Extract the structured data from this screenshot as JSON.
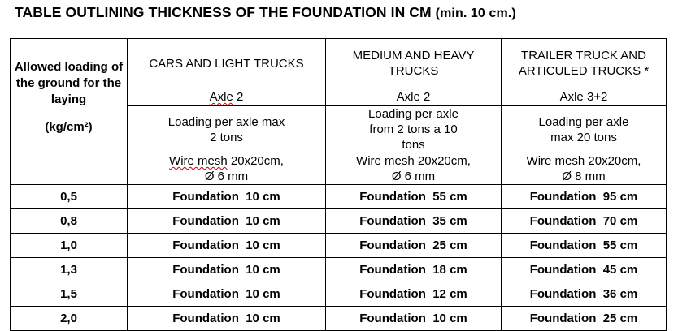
{
  "title": "TABLE OUTLINING  THICKNESS OF THE FOUNDATION  IN CM",
  "title_min": "(min. 10 cm.)",
  "row_header": {
    "label": "Allowed loading of the ground for the laying",
    "unit": "(kg/cm²)"
  },
  "columns": [
    {
      "heading": "CARS AND LIGHT TRUCKS",
      "axle_word": "Axle",
      "axle_value": "2",
      "loading": "Loading per axle max 2 tons",
      "mesh_word": "Wire mesh",
      "mesh_rest": "20x20cm,",
      "mesh_dia": "Ø 6 mm"
    },
    {
      "heading": "MEDIUM AND HEAVY TRUCKS",
      "axle_word": "Axle",
      "axle_value": "2",
      "loading": "Loading per axle from 2 tons a 10 tons",
      "mesh_word": "Wire mesh",
      "mesh_rest": "20x20cm,",
      "mesh_dia": "Ø 6 mm"
    },
    {
      "heading": "TRAILER TRUCK AND ARTICULED TRUCKS *",
      "axle_word": "Axle",
      "axle_value": "3+2",
      "loading": "Loading per axle max 20 tons",
      "mesh_word": "Wire mesh",
      "mesh_rest": "20x20cm,",
      "mesh_dia": "Ø 8 mm"
    }
  ],
  "rows": [
    {
      "load": "0,5",
      "cells": [
        "Foundation  10 cm",
        "Foundation  55 cm",
        "Foundation  95 cm"
      ]
    },
    {
      "load": "0,8",
      "cells": [
        "Foundation  10 cm",
        "Foundation  35 cm",
        "Foundation  70 cm"
      ]
    },
    {
      "load": "1,0",
      "cells": [
        "Foundation  10 cm",
        "Foundation  25 cm",
        "Foundation  55 cm"
      ]
    },
    {
      "load": "1,3",
      "cells": [
        "Foundation  10 cm",
        "Foundation  18 cm",
        "Foundation  45 cm"
      ]
    },
    {
      "load": "1,5",
      "cells": [
        "Foundation  10 cm",
        "Foundation  12 cm",
        "Foundation  36 cm"
      ]
    },
    {
      "load": "2,0",
      "cells": [
        "Foundation  10 cm",
        "Foundation  10 cm",
        "Foundation  25 cm"
      ]
    }
  ]
}
